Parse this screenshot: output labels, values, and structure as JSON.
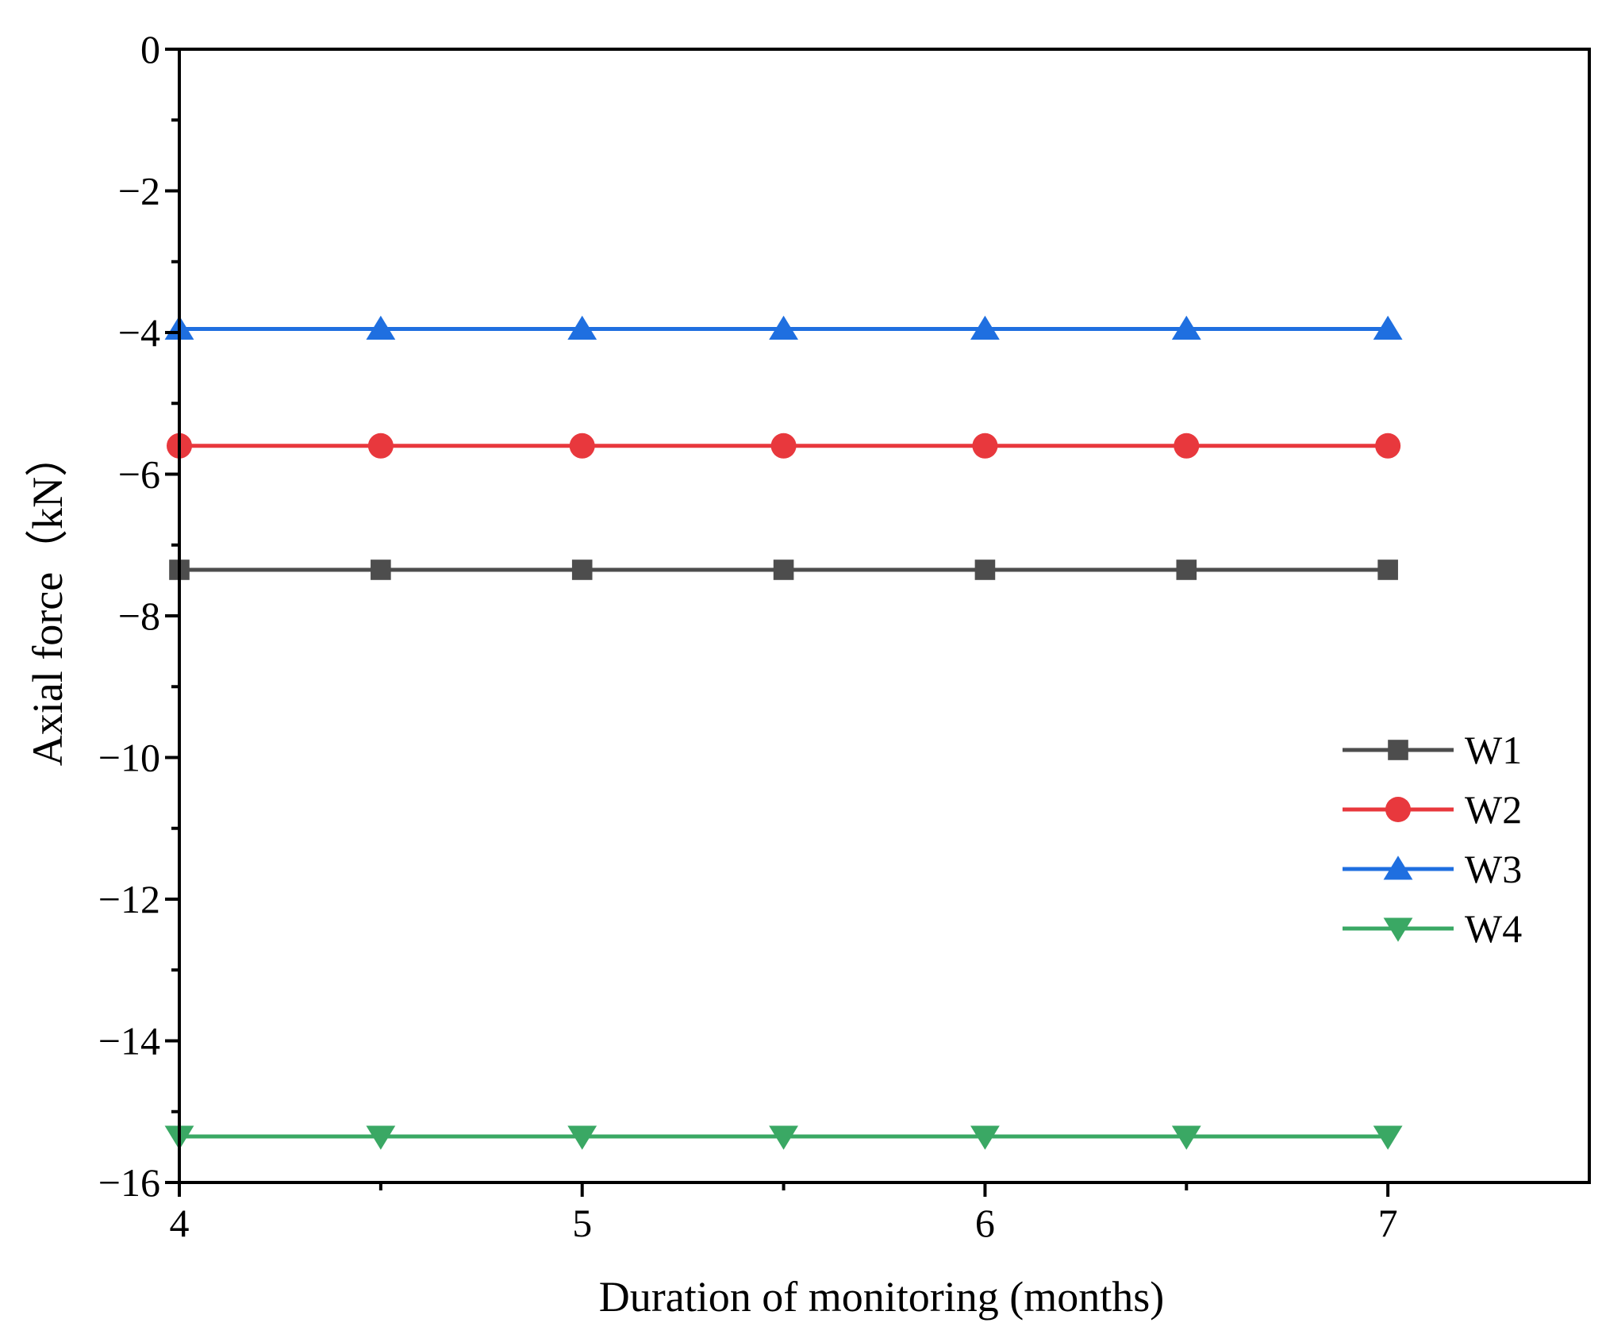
{
  "chart_data": {
    "type": "line",
    "title": "",
    "xlabel": "Duration of monitoring (months)",
    "ylabel": "Axial force（kN）",
    "xlim": [
      4,
      7.5
    ],
    "ylim": [
      -16,
      0
    ],
    "x_major_ticks": [
      4,
      5,
      6,
      7
    ],
    "x_tick_labels": [
      "4",
      "5",
      "6",
      "7"
    ],
    "x_minor_ticks": [
      4.5,
      5.5,
      6.5
    ],
    "y_major_ticks": [
      0,
      -2,
      -4,
      -6,
      -8,
      -10,
      -12,
      -14,
      -16
    ],
    "y_tick_labels": [
      "0",
      "−2",
      "−4",
      "−6",
      "−8",
      "−10",
      "−12",
      "−14",
      "−16"
    ],
    "y_minor_ticks": [
      -1,
      -3,
      -5,
      -7,
      -9,
      -11,
      -13,
      -15
    ],
    "grid": false,
    "legend_position": "right",
    "x": [
      4,
      4.5,
      5,
      5.5,
      6,
      6.5,
      7
    ],
    "series": [
      {
        "name": "W1",
        "color": "#4d4d4d",
        "marker": "square",
        "values": [
          -7.35,
          -7.35,
          -7.35,
          -7.35,
          -7.35,
          -7.35,
          -7.35
        ]
      },
      {
        "name": "W2",
        "color": "#e8383d",
        "marker": "circle",
        "values": [
          -5.6,
          -5.6,
          -5.6,
          -5.6,
          -5.6,
          -5.6,
          -5.6
        ]
      },
      {
        "name": "W3",
        "color": "#1f6fe0",
        "marker": "triangle-up",
        "values": [
          -3.95,
          -3.95,
          -3.95,
          -3.95,
          -3.95,
          -3.95,
          -3.95
        ]
      },
      {
        "name": "W4",
        "color": "#3aa864",
        "marker": "triangle-down",
        "values": [
          -15.35,
          -15.35,
          -15.35,
          -15.35,
          -15.35,
          -15.35,
          -15.35
        ]
      }
    ]
  }
}
